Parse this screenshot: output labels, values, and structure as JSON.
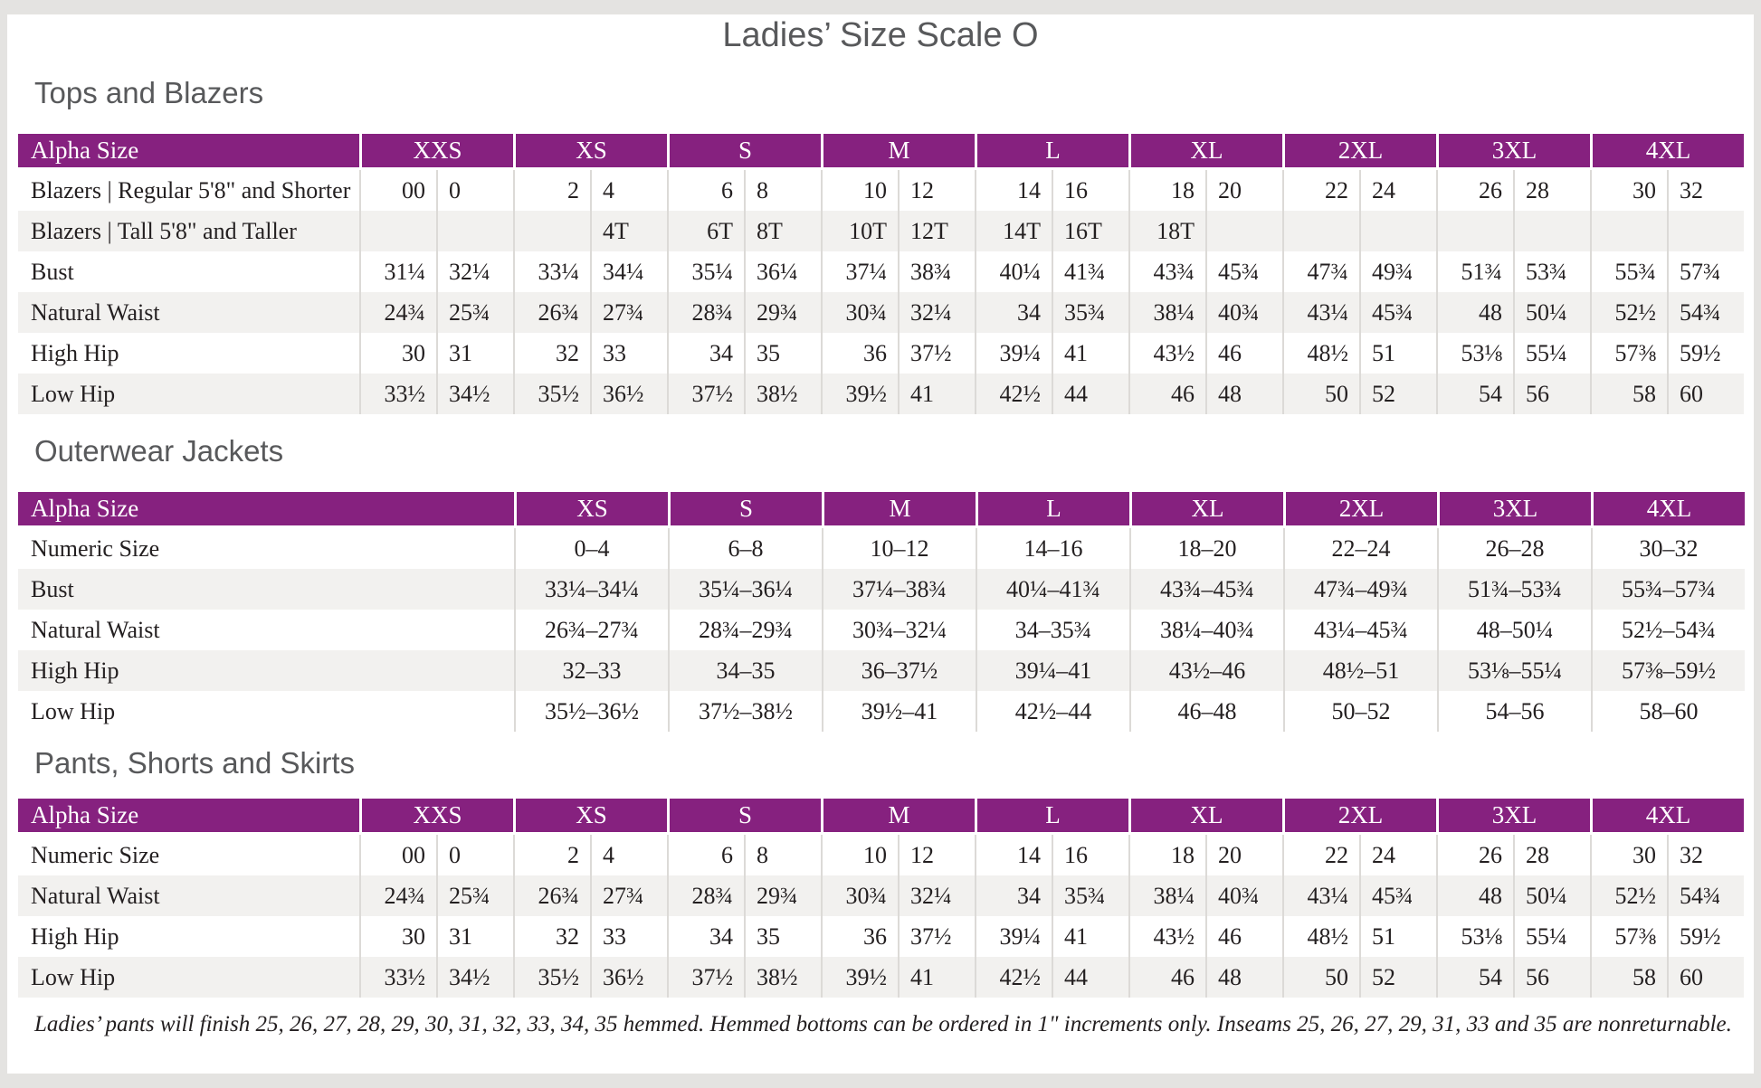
{
  "page": {
    "title": "Ladies’ Size Scale O",
    "footnote": "Ladies’ pants will finish 25, 26, 27, 28, 29, 30, 31, 32, 33, 34, 35 hemmed. Hemmed bottoms can be ordered in 1\" increments only. Inseams 25, 26, 27, 29, 31, 33 and 35 are nonreturnable."
  },
  "colors": {
    "header_purple": "#86217F",
    "row_stripe_gray": "#F2F1EF",
    "cell_border_gray": "#DCDAD7",
    "page_frame_gray": "#E4E3E1",
    "heading_gray": "#58595B",
    "text_dark": "#231F20",
    "header_text": "#FFFFFF"
  },
  "tables": [
    {
      "id": "tops-and-blazers",
      "heading": "Tops and Blazers",
      "corner_label": "Alpha Size",
      "paired_columns": true,
      "size_groups": [
        "XXS",
        "XS",
        "S",
        "M",
        "L",
        "XL",
        "2XL",
        "3XL",
        "4XL"
      ],
      "rows": [
        {
          "label": "Blazers | Regular 5'8\" and Shorter",
          "values": [
            "00",
            "0",
            "2",
            "4",
            "6",
            "8",
            "10",
            "12",
            "14",
            "16",
            "18",
            "20",
            "22",
            "24",
            "26",
            "28",
            "30",
            "32"
          ]
        },
        {
          "label": "Blazers | Tall 5'8\" and Taller",
          "values": [
            "",
            "",
            "",
            "4T",
            "6T",
            "8T",
            "10T",
            "12T",
            "14T",
            "16T",
            "18T",
            "",
            "",
            "",
            "",
            "",
            "",
            ""
          ]
        },
        {
          "label": "Bust",
          "values": [
            "31¼",
            "32¼",
            "33¼",
            "34¼",
            "35¼",
            "36¼",
            "37¼",
            "38¾",
            "40¼",
            "41¾",
            "43¾",
            "45¾",
            "47¾",
            "49¾",
            "51¾",
            "53¾",
            "55¾",
            "57¾"
          ]
        },
        {
          "label": "Natural Waist",
          "values": [
            "24¾",
            "25¾",
            "26¾",
            "27¾",
            "28¾",
            "29¾",
            "30¾",
            "32¼",
            "34",
            "35¾",
            "38¼",
            "40¾",
            "43¼",
            "45¾",
            "48",
            "50¼",
            "52½",
            "54¾"
          ]
        },
        {
          "label": "High Hip",
          "values": [
            "30",
            "31",
            "32",
            "33",
            "34",
            "35",
            "36",
            "37½",
            "39¼",
            "41",
            "43½",
            "46",
            "48½",
            "51",
            "53⅛",
            "55¼",
            "57⅜",
            "59½"
          ]
        },
        {
          "label": "Low Hip",
          "values": [
            "33½",
            "34½",
            "35½",
            "36½",
            "37½",
            "38½",
            "39½",
            "41",
            "42½",
            "44",
            "46",
            "48",
            "50",
            "52",
            "54",
            "56",
            "58",
            "60"
          ]
        }
      ]
    },
    {
      "id": "outerwear-jackets",
      "heading": "Outerwear Jackets",
      "corner_label": "Alpha Size",
      "paired_columns": false,
      "size_groups": [
        "XS",
        "S",
        "M",
        "L",
        "XL",
        "2XL",
        "3XL",
        "4XL"
      ],
      "rows": [
        {
          "label": "Numeric Size",
          "values": [
            "0–4",
            "6–8",
            "10–12",
            "14–16",
            "18–20",
            "22–24",
            "26–28",
            "30–32"
          ]
        },
        {
          "label": "Bust",
          "values": [
            "33¼–34¼",
            "35¼–36¼",
            "37¼–38¾",
            "40¼–41¾",
            "43¾–45¾",
            "47¾–49¾",
            "51¾–53¾",
            "55¾–57¾"
          ]
        },
        {
          "label": "Natural Waist",
          "values": [
            "26¾–27¾",
            "28¾–29¾",
            "30¾–32¼",
            "34–35¾",
            "38¼–40¾",
            "43¼–45¾",
            "48–50¼",
            "52½–54¾"
          ]
        },
        {
          "label": "High Hip",
          "values": [
            "32–33",
            "34–35",
            "36–37½",
            "39¼–41",
            "43½–46",
            "48½–51",
            "53⅛–55¼",
            "57⅜–59½"
          ]
        },
        {
          "label": "Low Hip",
          "values": [
            "35½–36½",
            "37½–38½",
            "39½–41",
            "42½–44",
            "46–48",
            "50–52",
            "54–56",
            "58–60"
          ]
        }
      ]
    },
    {
      "id": "pants-shorts-and-skirts",
      "heading": "Pants, Shorts and Skirts",
      "corner_label": "Alpha Size",
      "paired_columns": true,
      "size_groups": [
        "XXS",
        "XS",
        "S",
        "M",
        "L",
        "XL",
        "2XL",
        "3XL",
        "4XL"
      ],
      "rows": [
        {
          "label": "Numeric Size",
          "values": [
            "00",
            "0",
            "2",
            "4",
            "6",
            "8",
            "10",
            "12",
            "14",
            "16",
            "18",
            "20",
            "22",
            "24",
            "26",
            "28",
            "30",
            "32"
          ]
        },
        {
          "label": "Natural Waist",
          "values": [
            "24¾",
            "25¾",
            "26¾",
            "27¾",
            "28¾",
            "29¾",
            "30¾",
            "32¼",
            "34",
            "35¾",
            "38¼",
            "40¾",
            "43¼",
            "45¾",
            "48",
            "50¼",
            "52½",
            "54¾"
          ]
        },
        {
          "label": "High Hip",
          "values": [
            "30",
            "31",
            "32",
            "33",
            "34",
            "35",
            "36",
            "37½",
            "39¼",
            "41",
            "43½",
            "46",
            "48½",
            "51",
            "53⅛",
            "55¼",
            "57⅜",
            "59½"
          ]
        },
        {
          "label": "Low Hip",
          "values": [
            "33½",
            "34½",
            "35½",
            "36½",
            "37½",
            "38½",
            "39½",
            "41",
            "42½",
            "44",
            "46",
            "48",
            "50",
            "52",
            "54",
            "56",
            "58",
            "60"
          ]
        }
      ]
    }
  ]
}
